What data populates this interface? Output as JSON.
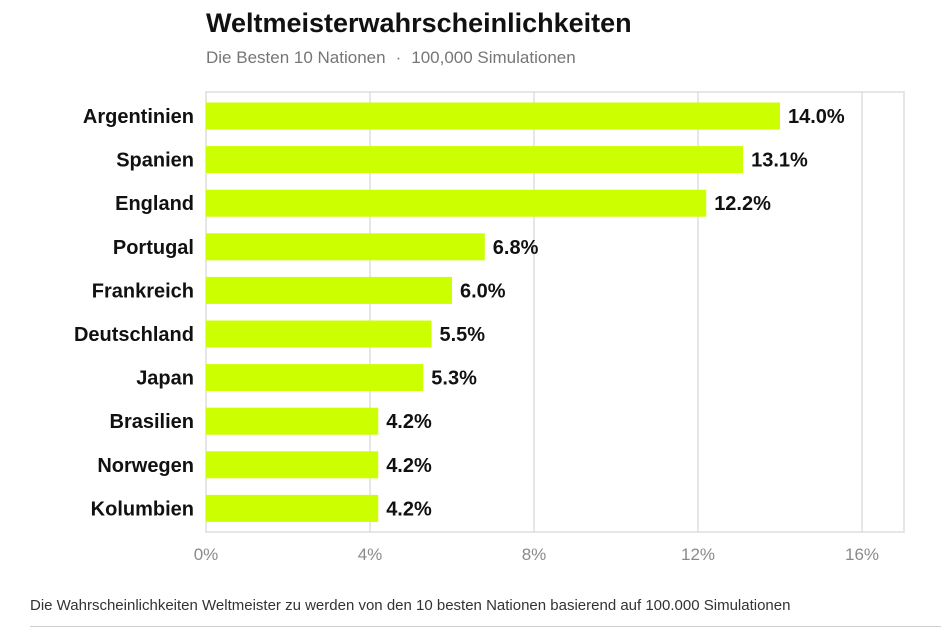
{
  "header": {
    "title": "Weltmeisterwahrscheinlichkeiten",
    "subtitle_part1": "Die Besten 10 Nationen",
    "subtitle_separator": "·",
    "subtitle_part2": "100,000 Simulationen"
  },
  "caption": "Die Wahrscheinlichkeiten Weltmeister zu werden von den 10 besten Nationen basierend auf 100.000 Simulationen",
  "colors": {
    "bar": "#ccff00",
    "grid": "#dddddd",
    "tick_text": "#8a8a8a",
    "label_text": "#111111"
  },
  "chart_data": {
    "type": "bar",
    "orientation": "horizontal",
    "categories": [
      "Argentinien",
      "Spanien",
      "England",
      "Portugal",
      "Frankreich",
      "Deutschland",
      "Japan",
      "Brasilien",
      "Norwegen",
      "Kolumbien"
    ],
    "values": [
      14.0,
      13.1,
      12.2,
      6.8,
      6.0,
      5.5,
      5.3,
      4.2,
      4.2,
      4.2
    ],
    "value_labels": [
      "14.0%",
      "13.1%",
      "12.2%",
      "6.8%",
      "6.0%",
      "5.5%",
      "5.3%",
      "4.2%",
      "4.2%",
      "4.2%"
    ],
    "xlim": [
      0,
      16
    ],
    "xticks": [
      0,
      4,
      8,
      12,
      16
    ],
    "xtick_labels": [
      "0%",
      "4%",
      "8%",
      "12%",
      "16%"
    ],
    "grid": true,
    "legend": "none"
  }
}
